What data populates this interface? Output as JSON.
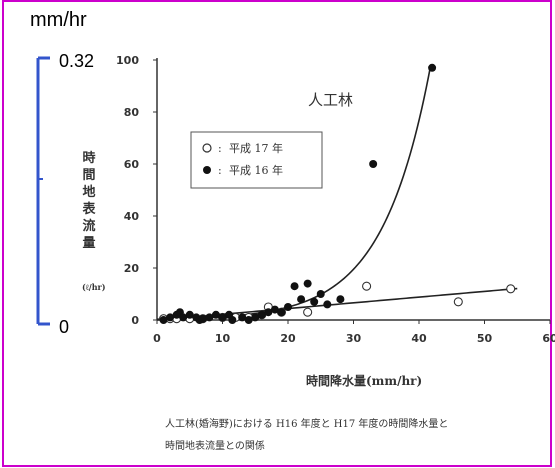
{
  "overlay": {
    "unit_top": "mm/hr",
    "value_top": "0.32",
    "value_bottom": "0"
  },
  "caption": {
    "line1": "人工林(婚海野)における H16 年度と H17 年度の時間降水量と",
    "line2": "時間地表流量との関係"
  },
  "colors": {
    "frame_border": "#cc00cc",
    "bracket": "#3355cc",
    "axis": "#333333",
    "text": "#333333"
  },
  "chart_data": {
    "type": "scatter",
    "title": "人工林",
    "xlabel": "時間降水量(mm/hr)",
    "ylabel": "時間地表流量",
    "ylabel_unit": "(ℓ/hr)",
    "xlim": [
      0,
      60
    ],
    "ylim": [
      0,
      100
    ],
    "x_ticks": [
      0,
      10,
      20,
      30,
      40,
      50,
      60
    ],
    "y_ticks": [
      0,
      20,
      40,
      60,
      80,
      100
    ],
    "legend_placement": "upper-left",
    "series": [
      {
        "name": "平成 17 年",
        "marker": "open-circle",
        "points": [
          [
            1,
            0.5
          ],
          [
            2,
            0.5
          ],
          [
            3,
            0.5
          ],
          [
            5,
            0.5
          ],
          [
            7,
            0.5
          ],
          [
            10,
            1
          ],
          [
            12,
            1
          ],
          [
            14,
            1
          ],
          [
            16,
            2
          ],
          [
            17,
            5
          ],
          [
            19,
            3
          ],
          [
            23,
            3
          ],
          [
            32,
            13
          ],
          [
            46,
            7
          ],
          [
            54,
            12
          ]
        ]
      },
      {
        "name": "平成 16 年",
        "marker": "filled-circle",
        "points": [
          [
            1,
            0
          ],
          [
            2,
            1
          ],
          [
            3,
            2
          ],
          [
            3.5,
            3
          ],
          [
            4,
            1
          ],
          [
            5,
            2
          ],
          [
            6,
            1
          ],
          [
            6.5,
            0
          ],
          [
            7,
            0.5
          ],
          [
            8,
            1
          ],
          [
            9,
            2
          ],
          [
            10,
            1
          ],
          [
            11,
            2
          ],
          [
            11.5,
            0
          ],
          [
            13,
            1
          ],
          [
            14,
            0
          ],
          [
            15,
            1
          ],
          [
            16,
            2
          ],
          [
            17,
            3
          ],
          [
            18,
            4
          ],
          [
            19,
            3
          ],
          [
            20,
            5
          ],
          [
            21,
            13
          ],
          [
            22,
            8
          ],
          [
            23,
            14
          ],
          [
            24,
            7
          ],
          [
            25,
            10
          ],
          [
            26,
            6
          ],
          [
            28,
            8
          ],
          [
            33,
            60
          ],
          [
            42,
            97
          ]
        ]
      }
    ],
    "curves": [
      {
        "name": "exponential-fit",
        "kind": "exp",
        "a": 0.32,
        "b": 0.137,
        "x_from": 0,
        "x_to": 41.8
      },
      {
        "name": "linear-fit",
        "kind": "linear",
        "slope": 0.22,
        "intercept": 0,
        "x_from": 0,
        "x_to": 55
      }
    ]
  }
}
